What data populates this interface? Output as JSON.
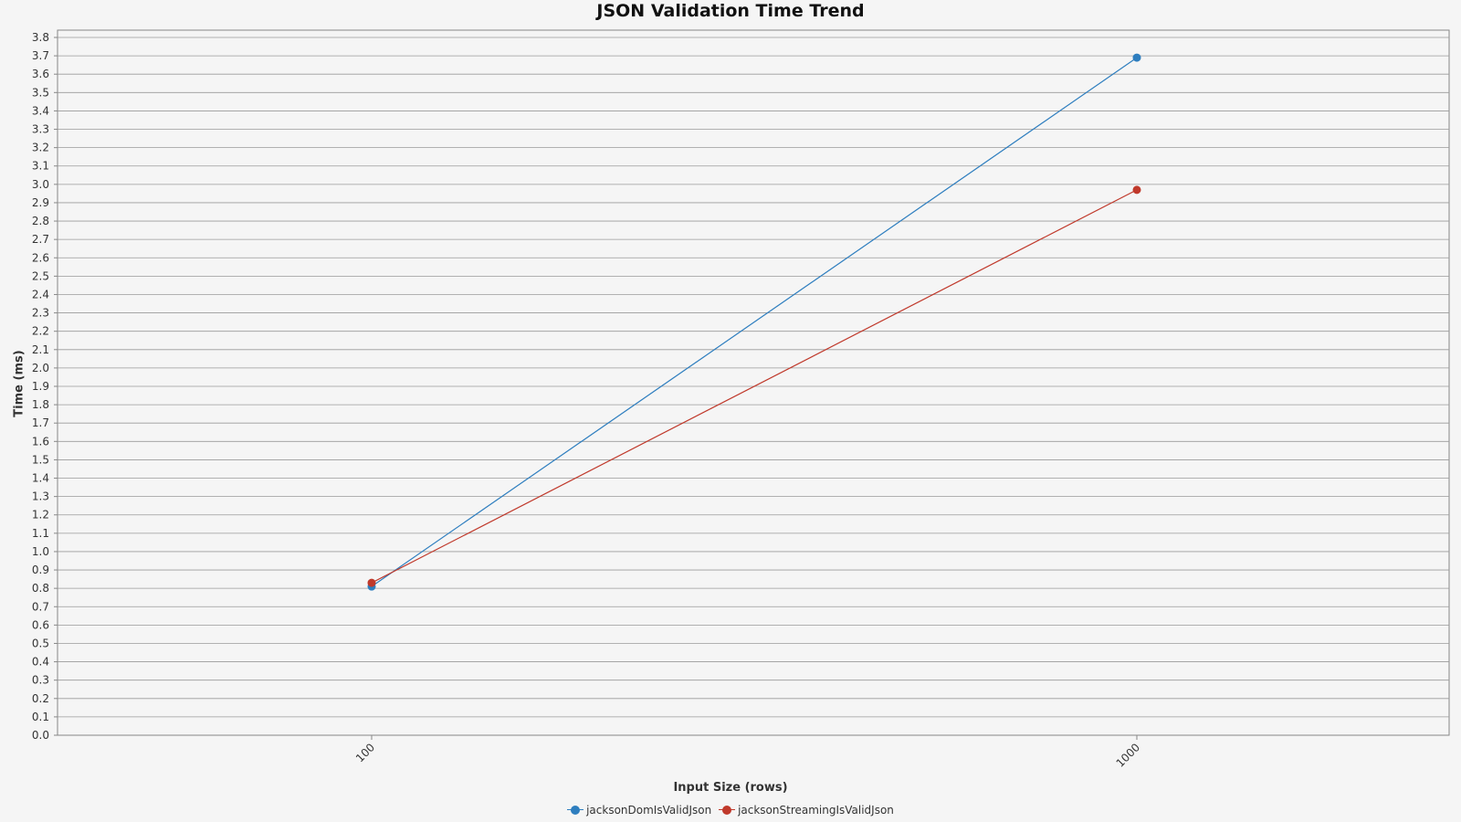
{
  "chart_data": {
    "type": "line",
    "title": "JSON Validation Time Trend",
    "xlabel": "Input Size (rows)",
    "ylabel": "Time (ms)",
    "categories": [
      "100",
      "1000"
    ],
    "ylim": [
      0.0,
      3.8
    ],
    "ytick_step": 0.1,
    "grid": true,
    "legend_position": "bottom",
    "series": [
      {
        "name": "jacksonDomIsValidJson",
        "color": "#2e7ebf",
        "values": [
          0.81,
          3.69
        ]
      },
      {
        "name": "jacksonStreamingIsValidJson",
        "color": "#c0392b",
        "values": [
          0.83,
          2.97
        ]
      }
    ]
  }
}
